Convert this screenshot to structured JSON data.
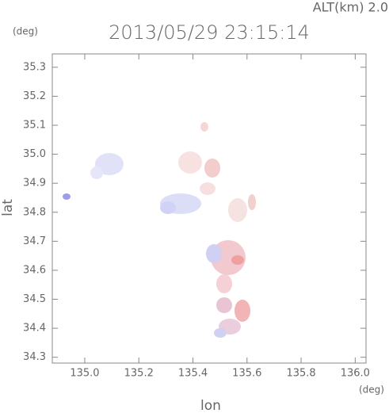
{
  "chart_data": {
    "type": "map",
    "title": "2013/05/29 23:15:14",
    "altitude_label": "ALT(km)  2.0",
    "y_unit": "(deg)",
    "x_unit": "(deg)",
    "xlabel": "lon",
    "ylabel": "lat",
    "xlim": [
      134.88,
      136.04
    ],
    "ylim": [
      34.28,
      35.346
    ],
    "xticks": [
      {
        "value": 135.0,
        "label": "135.0"
      },
      {
        "value": 135.2,
        "label": "135.2"
      },
      {
        "value": 135.4,
        "label": "135.4"
      },
      {
        "value": 135.6,
        "label": "135.6"
      },
      {
        "value": 135.8,
        "label": "135.8"
      },
      {
        "value": 136.0,
        "label": "136.0"
      }
    ],
    "yticks": [
      34.3,
      34.4,
      34.5,
      34.6,
      34.7,
      34.8,
      34.9,
      {
        "value": 35.0,
        "label": "35.0"
      },
      35.1,
      35.2,
      35.3
    ]
  }
}
